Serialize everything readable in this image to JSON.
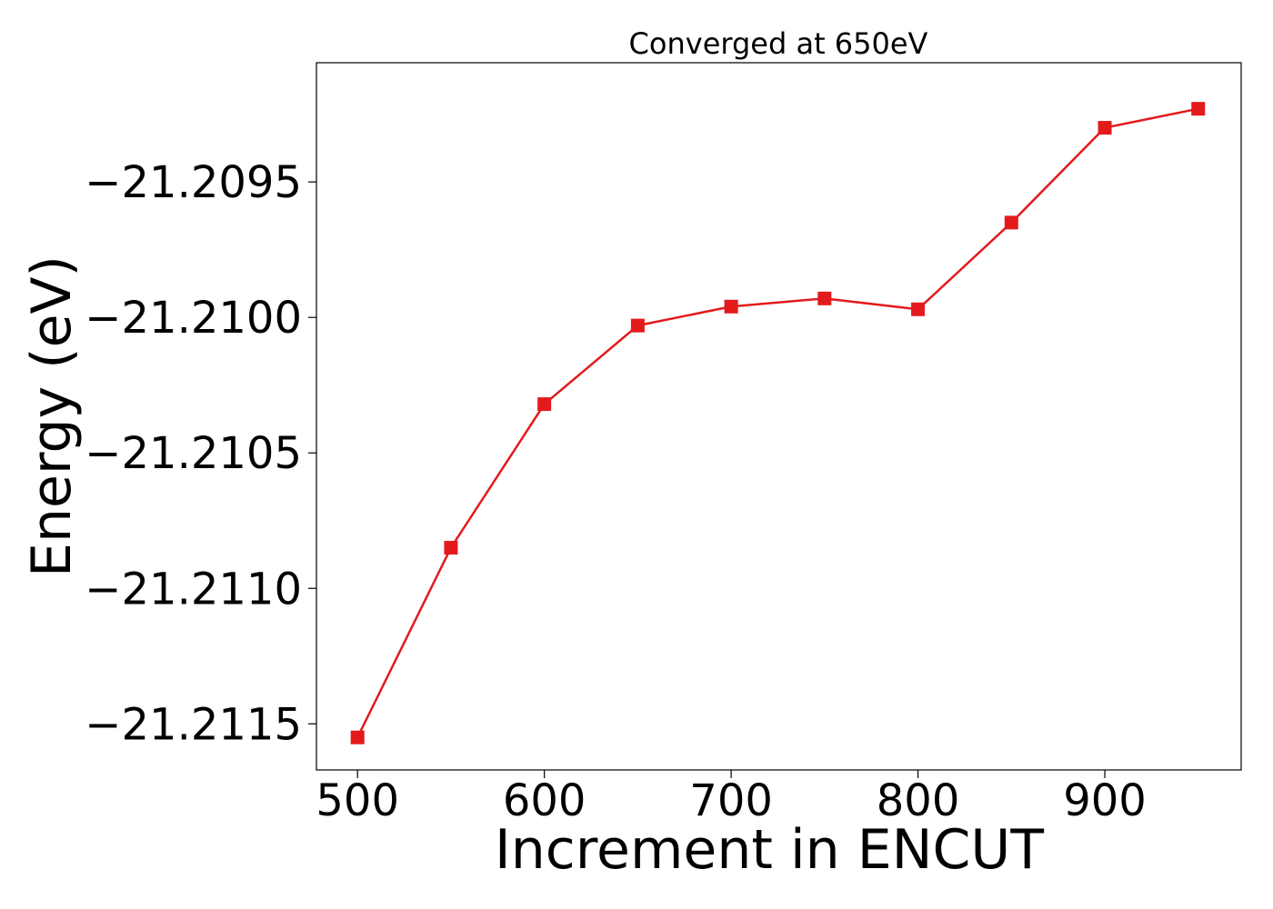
{
  "chart_data": {
    "type": "line",
    "title": "Converged at 650eV",
    "xlabel": "Increment in ENCUT",
    "ylabel": "Energy (eV)",
    "x": [
      500,
      550,
      600,
      650,
      700,
      750,
      800,
      850,
      900,
      950
    ],
    "series": [
      {
        "values": [
          -21.21155,
          -21.21085,
          -21.21032,
          -21.21003,
          -21.20996,
          -21.20993,
          -21.20997,
          -21.20965,
          -21.2093,
          -21.20923
        ],
        "color": "#e31a1c",
        "marker": "square"
      }
    ],
    "xlim": [
      478,
      973
    ],
    "ylim": [
      -21.21167,
      -21.20906
    ],
    "xticks": [
      500,
      600,
      700,
      800,
      900
    ],
    "xtick_labels": [
      "500",
      "600",
      "700",
      "800",
      "900"
    ],
    "yticks": [
      -21.2115,
      -21.211,
      -21.2105,
      -21.21,
      -21.2095
    ],
    "ytick_labels": [
      "−21.2115",
      "−21.2110",
      "−21.2105",
      "−21.2100",
      "−21.2095"
    ],
    "grid": false,
    "legend": "none"
  }
}
